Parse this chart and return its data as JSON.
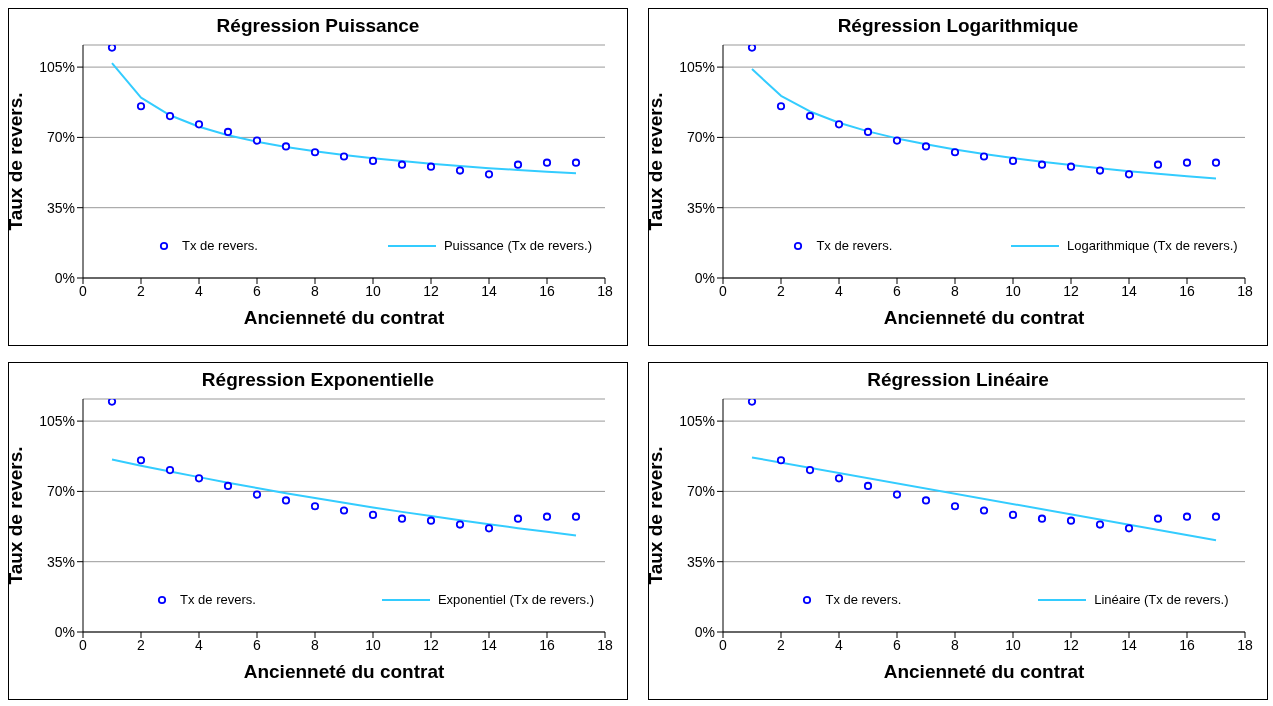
{
  "chart_data": [
    {
      "type": "scatter",
      "title": "Régression Puissance",
      "xlabel": "Ancienneté du contrat",
      "ylabel": "Taux de revers.",
      "xlim": [
        0,
        18
      ],
      "xticks": [
        0,
        2,
        4,
        6,
        8,
        10,
        12,
        14,
        16,
        18
      ],
      "ylim": [
        0,
        116
      ],
      "yticks": [
        {
          "value": 0,
          "label": "0%"
        },
        {
          "value": 35,
          "label": "35%"
        },
        {
          "value": 70,
          "label": "70%"
        },
        {
          "value": 105,
          "label": "105%"
        }
      ],
      "grid": "y",
      "legend": "bottom",
      "series": [
        {
          "name": "Tx de revers.",
          "marker": "circle",
          "color": "#0000ff",
          "x": [
            1,
            2,
            3,
            4,
            5,
            6,
            7,
            8,
            9,
            10,
            11,
            12,
            13,
            14,
            15,
            16,
            17
          ],
          "values": [
            114.7,
            85.5,
            80.6,
            76.5,
            72.7,
            68.4,
            65.5,
            62.6,
            60.5,
            58.3,
            56.4,
            55.4,
            53.5,
            51.6,
            56.4,
            57.4,
            57.4
          ]
        },
        {
          "name": "Puissance (Tx de revers.)",
          "type": "line",
          "color": "#33ccff",
          "x": [
            1,
            2,
            3,
            4,
            5,
            6,
            7,
            8,
            9,
            10,
            11,
            12,
            13,
            14,
            15,
            16,
            17
          ],
          "values": [
            107,
            89.8,
            81,
            75.3,
            71.1,
            67.8,
            65.2,
            63.1,
            61.2,
            59.6,
            58.2,
            56.9,
            55.8,
            54.7,
            53.8,
            52.9,
            52.1
          ]
        }
      ]
    },
    {
      "type": "scatter",
      "title": "Régression Logarithmique",
      "xlabel": "Ancienneté du contrat",
      "ylabel": "Taux de revers.",
      "xlim": [
        0,
        18
      ],
      "xticks": [
        0,
        2,
        4,
        6,
        8,
        10,
        12,
        14,
        16,
        18
      ],
      "ylim": [
        0,
        116
      ],
      "yticks": [
        {
          "value": 0,
          "label": "0%"
        },
        {
          "value": 35,
          "label": "35%"
        },
        {
          "value": 70,
          "label": "70%"
        },
        {
          "value": 105,
          "label": "105%"
        }
      ],
      "grid": "y",
      "legend": "bottom",
      "series": [
        {
          "name": "Tx de revers.",
          "marker": "circle",
          "color": "#0000ff",
          "x": [
            1,
            2,
            3,
            4,
            5,
            6,
            7,
            8,
            9,
            10,
            11,
            12,
            13,
            14,
            15,
            16,
            17
          ],
          "values": [
            114.7,
            85.5,
            80.6,
            76.5,
            72.7,
            68.4,
            65.5,
            62.6,
            60.5,
            58.3,
            56.4,
            55.4,
            53.5,
            51.6,
            56.4,
            57.4,
            57.4
          ]
        },
        {
          "name": "Logarithmique (Tx de revers.)",
          "type": "line",
          "color": "#33ccff",
          "x": [
            1,
            2,
            3,
            4,
            5,
            6,
            7,
            8,
            9,
            10,
            11,
            12,
            13,
            14,
            15,
            16,
            17
          ],
          "values": [
            104,
            90.7,
            82.9,
            77.3,
            73,
            69.5,
            66.6,
            64,
            61.7,
            59.7,
            57.9,
            56.2,
            54.6,
            53.2,
            51.9,
            50.6,
            49.5
          ]
        }
      ]
    },
    {
      "type": "scatter",
      "title": "Régression Exponentielle",
      "xlabel": "Ancienneté du contrat",
      "ylabel": "Taux de revers.",
      "xlim": [
        0,
        18
      ],
      "xticks": [
        0,
        2,
        4,
        6,
        8,
        10,
        12,
        14,
        16,
        18
      ],
      "ylim": [
        0,
        116
      ],
      "yticks": [
        {
          "value": 0,
          "label": "0%"
        },
        {
          "value": 35,
          "label": "35%"
        },
        {
          "value": 70,
          "label": "70%"
        },
        {
          "value": 105,
          "label": "105%"
        }
      ],
      "grid": "y",
      "legend": "bottom",
      "series": [
        {
          "name": "Tx de revers.",
          "marker": "circle",
          "color": "#0000ff",
          "x": [
            1,
            2,
            3,
            4,
            5,
            6,
            7,
            8,
            9,
            10,
            11,
            12,
            13,
            14,
            15,
            16,
            17
          ],
          "values": [
            114.7,
            85.5,
            80.6,
            76.5,
            72.7,
            68.4,
            65.5,
            62.6,
            60.5,
            58.3,
            56.4,
            55.4,
            53.5,
            51.6,
            56.4,
            57.4,
            57.4
          ]
        },
        {
          "name": "Exponentiel (Tx de revers.)",
          "type": "line",
          "color": "#33ccff",
          "x": [
            1,
            2,
            3,
            4,
            5,
            6,
            7,
            8,
            9,
            10,
            11,
            12,
            13,
            14,
            15,
            16,
            17
          ],
          "values": [
            85.9,
            82.8,
            79.9,
            77.1,
            74.3,
            71.7,
            69.1,
            66.7,
            64.3,
            62,
            59.8,
            57.7,
            55.6,
            53.7,
            51.7,
            49.9,
            48.1
          ]
        }
      ]
    },
    {
      "type": "scatter",
      "title": "Régression Linéaire",
      "xlabel": "Ancienneté du contrat",
      "ylabel": "Taux de revers.",
      "xlim": [
        0,
        18
      ],
      "xticks": [
        0,
        2,
        4,
        6,
        8,
        10,
        12,
        14,
        16,
        18
      ],
      "ylim": [
        0,
        116
      ],
      "yticks": [
        {
          "value": 0,
          "label": "0%"
        },
        {
          "value": 35,
          "label": "35%"
        },
        {
          "value": 70,
          "label": "70%"
        },
        {
          "value": 105,
          "label": "105%"
        }
      ],
      "grid": "y",
      "legend": "bottom",
      "series": [
        {
          "name": "Tx de revers.",
          "marker": "circle",
          "color": "#0000ff",
          "x": [
            1,
            2,
            3,
            4,
            5,
            6,
            7,
            8,
            9,
            10,
            11,
            12,
            13,
            14,
            15,
            16,
            17
          ],
          "values": [
            114.7,
            85.5,
            80.6,
            76.5,
            72.7,
            68.4,
            65.5,
            62.6,
            60.5,
            58.3,
            56.4,
            55.4,
            53.5,
            51.6,
            56.4,
            57.4,
            57.4
          ]
        },
        {
          "name": "Linéaire (Tx de revers.)",
          "type": "line",
          "color": "#33ccff",
          "x": [
            1,
            17
          ],
          "values": [
            86.9,
            45.7
          ]
        }
      ]
    }
  ]
}
